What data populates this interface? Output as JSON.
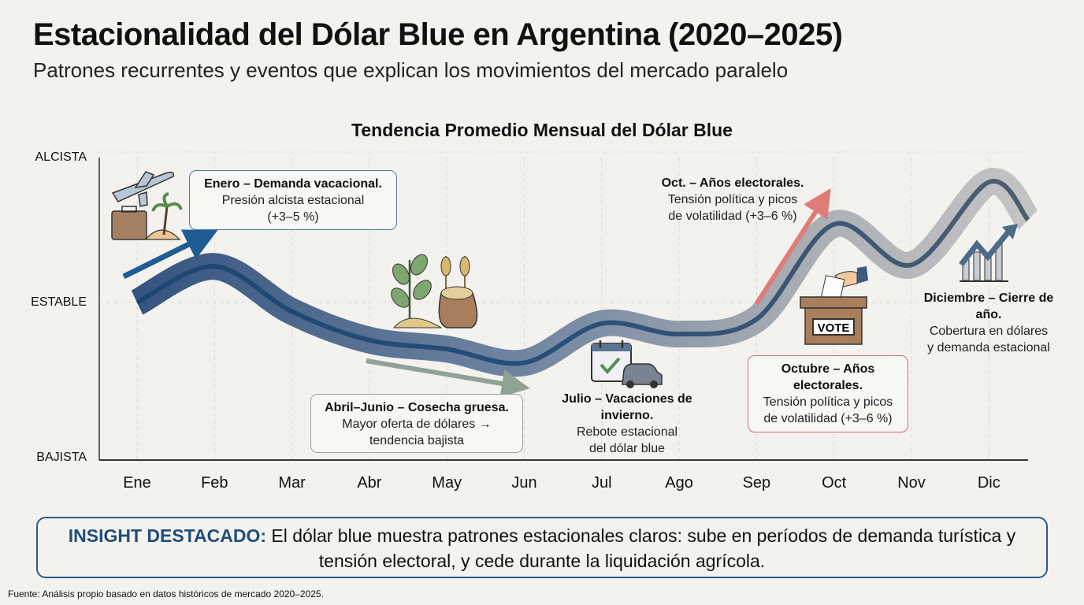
{
  "title": "Estacionalidad del Dólar Blue en Argentina (2020–2025)",
  "subtitle": "Patrones recurrentes y eventos que explican los movimientos del mercado paralelo",
  "chart_data": {
    "type": "line",
    "title": "Tendencia Promedio Mensual del Dólar Blue",
    "categories": [
      "Ene",
      "Feb",
      "Mar",
      "Abr",
      "May",
      "Jun",
      "Jul",
      "Ago",
      "Sep",
      "Oct",
      "Nov",
      "Dic"
    ],
    "y_tick_labels": [
      "BAJISTA",
      "ESTABLE",
      "ALCISTA"
    ],
    "y_scale": "qualitative, -1 = BAJISTA, 0 = ESTABLE, 1 = ALCISTA",
    "ylim": [
      -1,
      1
    ],
    "values": [
      0.0,
      0.24,
      -0.06,
      -0.25,
      -0.31,
      -0.4,
      -0.14,
      -0.21,
      -0.11,
      0.52,
      0.25,
      0.8
    ],
    "grid": true,
    "colors": {
      "early": "#1f4e79",
      "late": "#5a6878",
      "band_early": "#4f6a92",
      "band_late": "#bdbdbd"
    },
    "annotations": [
      {
        "title": "Enero – Demanda vacacional.",
        "text": [
          "Presión alcista estacional",
          "(+3–5 %)"
        ],
        "icon": "airplane-suitcase-palm-icon",
        "arrow": "up",
        "color": "#1f5c94"
      },
      {
        "title": "Abril–Junio – Cosecha gruesa.",
        "text": [
          "Mayor oferta de dólares →",
          "tendencia bajista"
        ],
        "icon": "plant-wheat-sack-icon",
        "arrow": "down",
        "color": "#8fa294"
      },
      {
        "title": "Julio – Vacaciones de invierno.",
        "text": [
          "Rebote estacional",
          "del dólar blue"
        ],
        "icon": "calendar-car-icon"
      },
      {
        "title": "Oct. – Años electorales.",
        "text": [
          "Tensión política y picos",
          "de volatilidad (+3–6 %)"
        ],
        "arrow": "up",
        "color": "#e07c78"
      },
      {
        "title": "Octubre – Años electorales.",
        "text": [
          "Tensión política y picos",
          "de volatilidad (+3–6 %)"
        ],
        "icon": "ballot-box-icon",
        "vote_label": "VOTE",
        "color": "#c9706c"
      },
      {
        "title": "Diciembre – Cierre de año.",
        "text": [
          "Cobertura en dólares",
          "y demanda estacional"
        ],
        "icon": "growth-chart-icon"
      }
    ]
  },
  "insight": {
    "label": "INSIGHT DESTACADO:",
    "text": "El dólar blue muestra patrones estacionales claros: sube en períodos de demanda turística y tensión electoral, y cede durante la liquidación agrícola."
  },
  "footer": "Fuente: Análisis propio basado en datos históricos de mercado 2020–2025."
}
